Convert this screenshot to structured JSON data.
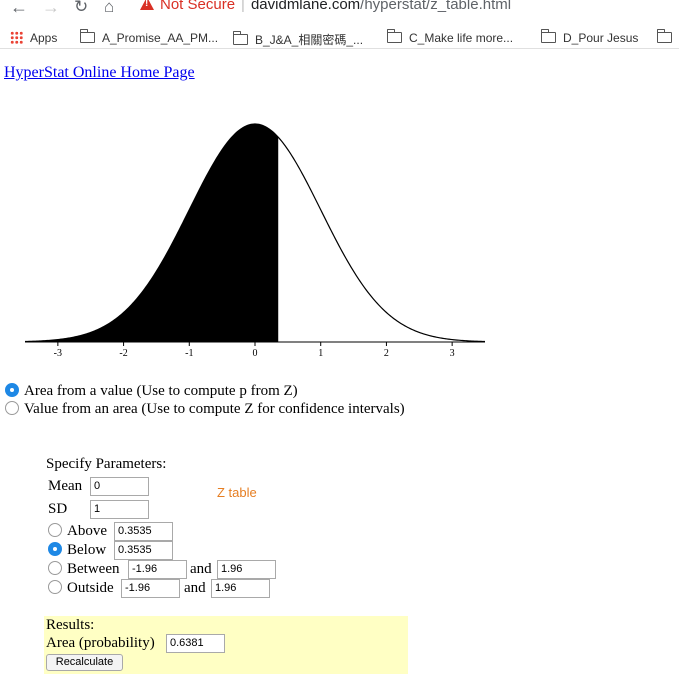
{
  "browser": {
    "security_label": "Not Secure",
    "url_host": "davidmlane.com",
    "url_path": "/hyperstat/z_table.html",
    "bookmarks": [
      {
        "label": "Apps",
        "icon": "apps-grid-icon"
      },
      {
        "label": "A_Promise_AA_PM...",
        "icon": "folder-icon"
      },
      {
        "label": "B_J&A_相關密碼_...",
        "icon": "folder-icon"
      },
      {
        "label": "C_Make life more...",
        "icon": "folder-icon"
      },
      {
        "label": "D_Pour Jesus",
        "icon": "folder-icon"
      }
    ]
  },
  "page": {
    "home_link": "HyperStat Online Home Page",
    "mode_options": [
      {
        "label": "Area from a value (Use to compute p from Z)",
        "selected": true
      },
      {
        "label": "Value from an area (Use to compute Z for confidence intervals)",
        "selected": false
      }
    ],
    "params": {
      "title": "Specify Parameters:",
      "mean_label": "Mean",
      "mean_value": "0",
      "sd_label": "SD",
      "sd_value": "1",
      "ztable_link": "Z table",
      "above_label": "Above",
      "above_value": "0.3535",
      "below_label": "Below",
      "below_value": "0.3535",
      "between_label": "Between",
      "between_low": "-1.96",
      "between_high": "1.96",
      "outside_label": "Outside",
      "outside_low": "-1.96",
      "outside_high": "1.96",
      "and_label": "and",
      "selected": "Below"
    },
    "results": {
      "title": "Results:",
      "area_label": "Area (probability)",
      "area_value": "0.6381",
      "recalc_label": "Recalculate"
    }
  },
  "chart_data": {
    "type": "area",
    "distribution": "standard normal",
    "mean": 0,
    "sd": 1,
    "shaded_region": "below",
    "cutoff_z": 0.3535,
    "xlim": [
      -3.5,
      3.5
    ],
    "x_ticks": [
      "-3",
      "-2",
      "-1",
      "0",
      "1",
      "2",
      "3"
    ],
    "x_tick_values": [
      -3,
      -2,
      -1,
      0,
      1,
      2,
      3
    ]
  }
}
